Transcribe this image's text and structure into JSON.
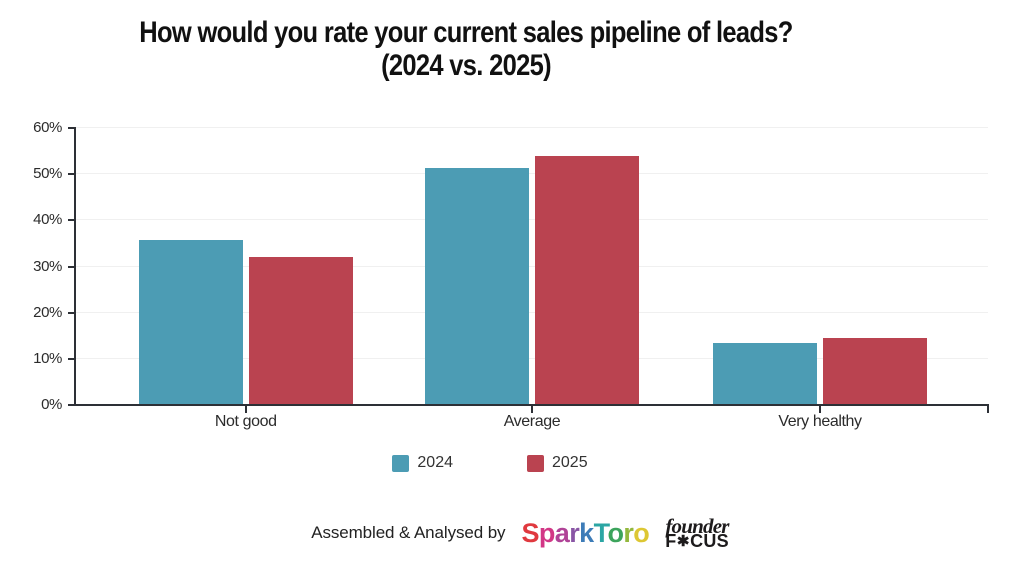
{
  "title": {
    "line1": "How would you rate your current sales pipeline of leads?",
    "line2": "(2024 vs. 2025)"
  },
  "chart_data": {
    "type": "bar",
    "title": "How would you rate your current sales pipeline of leads? (2024 vs. 2025)",
    "categories": [
      "Not good",
      "Average",
      "Very healthy"
    ],
    "series": [
      {
        "name": "2024",
        "color": "#4c9cb4",
        "values": [
          35.5,
          51.1,
          13.2
        ]
      },
      {
        "name": "2025",
        "color": "#ba4350",
        "values": [
          31.8,
          53.8,
          14.4
        ]
      }
    ],
    "xlabel": "",
    "ylabel": "",
    "ylim": [
      0,
      60
    ],
    "yticks": [
      0,
      10,
      20,
      30,
      40,
      50,
      60
    ],
    "ytick_labels": [
      "0%",
      "10%",
      "20%",
      "30%",
      "40%",
      "50%",
      "60%"
    ],
    "grid": true,
    "gridline_color": "#f0f0f0",
    "axis_color": "#2d3036",
    "legend_position": "bottom"
  },
  "footer": {
    "credit_text": "Assembled & Analysed by",
    "sparktoro": {
      "letters": [
        {
          "ch": "S",
          "color": "#e0393f"
        },
        {
          "ch": "p",
          "color": "#d23786"
        },
        {
          "ch": "a",
          "color": "#b04397"
        },
        {
          "ch": "r",
          "color": "#8955a5"
        },
        {
          "ch": "k",
          "color": "#3d7cb8"
        },
        {
          "ch": "T",
          "color": "#2ca6a4"
        },
        {
          "ch": "o",
          "color": "#3ca45c"
        },
        {
          "ch": "r",
          "color": "#93b83d"
        },
        {
          "ch": "o",
          "color": "#ddc733"
        }
      ]
    },
    "founder_focus": {
      "script_text": "founder",
      "wordmark_prefix": "F",
      "gear_glyph": "✱",
      "wordmark_suffix": "CUS"
    }
  }
}
